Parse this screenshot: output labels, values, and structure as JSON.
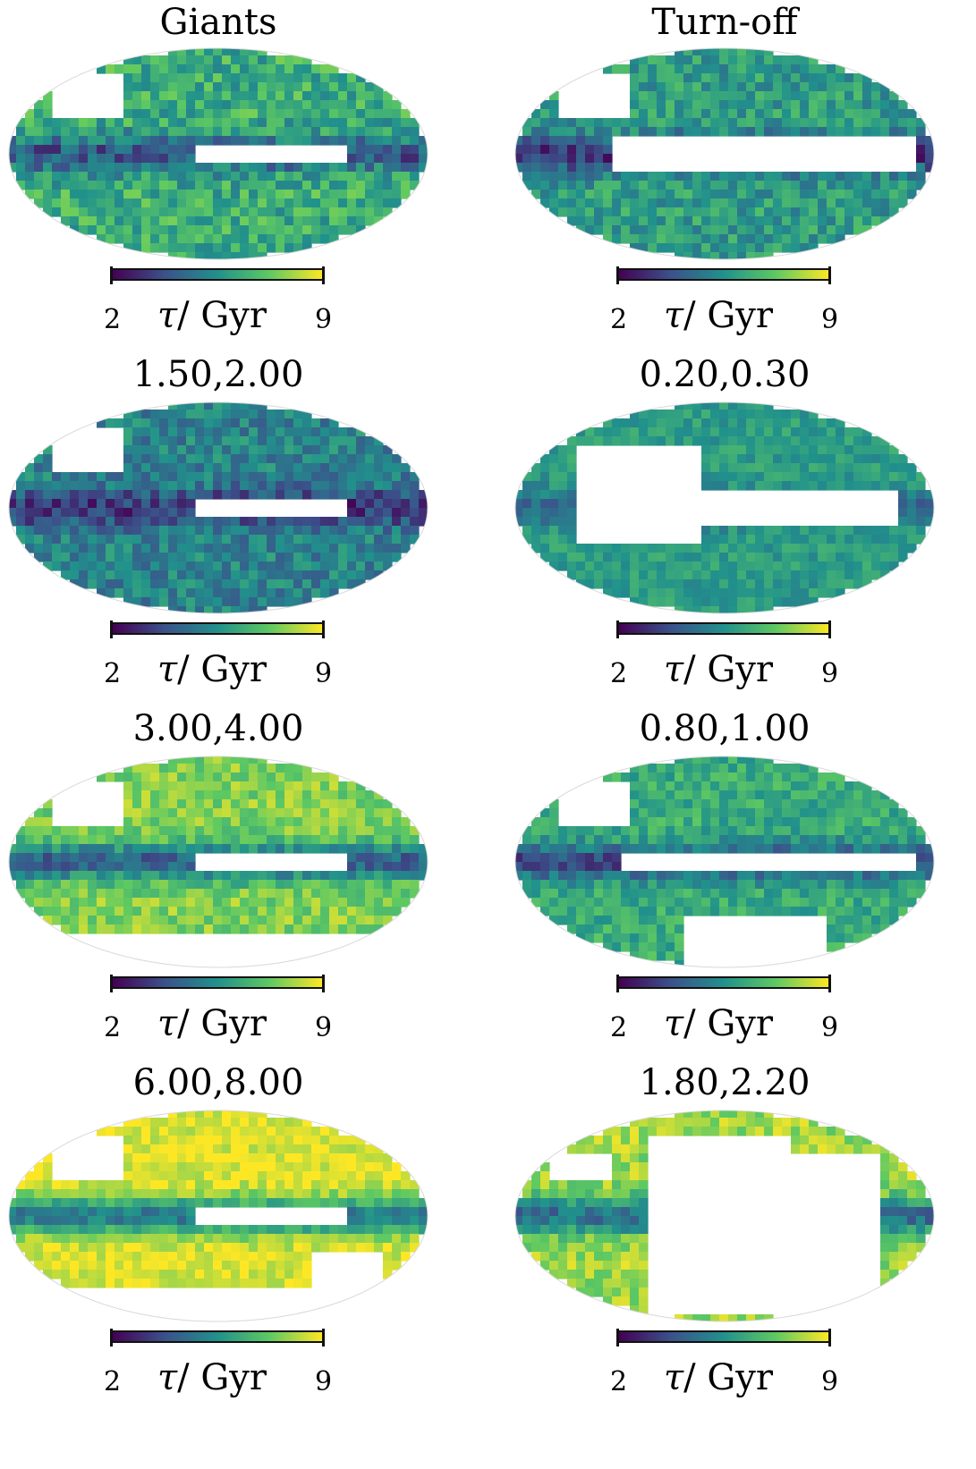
{
  "columns": [
    {
      "title": "Giants",
      "panels": [
        {
          "title": ""
        },
        {
          "title": "1.50,2.00"
        },
        {
          "title": "3.00,4.00"
        },
        {
          "title": "6.00,8.00"
        }
      ]
    },
    {
      "title": "Turn-off",
      "panels": [
        {
          "title": ""
        },
        {
          "title": "0.20,0.30"
        },
        {
          "title": "0.80,1.00"
        },
        {
          "title": "1.80,2.20"
        }
      ]
    }
  ],
  "colorbar": {
    "min_label": "2",
    "max_label": "9",
    "unit_symbol": "τ",
    "unit_text": "/ Gyr",
    "colormap": [
      "#440154",
      "#3b528b",
      "#21918c",
      "#5ec962",
      "#fde725"
    ]
  }
}
